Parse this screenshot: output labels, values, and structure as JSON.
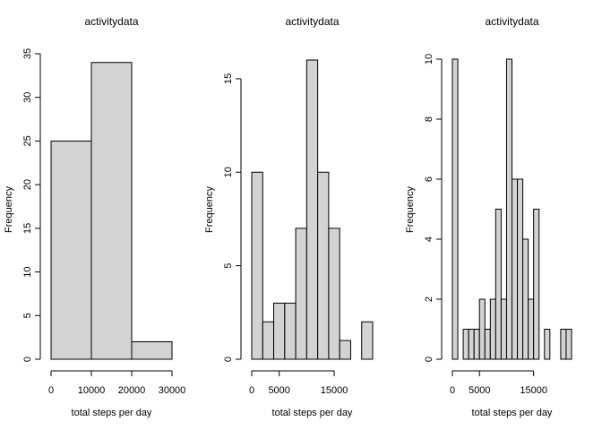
{
  "chart_data": [
    {
      "type": "histogram",
      "title": "activitydata",
      "xlabel": "total steps per day",
      "ylabel": "Frequency",
      "bins": [
        0,
        10000,
        20000,
        30000
      ],
      "counts": [
        25,
        34,
        2
      ],
      "color": "#d3d3d3",
      "xlim": [
        0,
        30000
      ],
      "ylim": [
        0,
        35
      ],
      "xticks": [
        0,
        10000,
        20000,
        30000
      ],
      "yticks": [
        0,
        5,
        10,
        15,
        20,
        25,
        30,
        35
      ]
    },
    {
      "type": "histogram",
      "title": "activitydata",
      "xlabel": "total steps per day",
      "ylabel": "Frequency",
      "bins": [
        0,
        2000,
        4000,
        6000,
        8000,
        10000,
        12000,
        14000,
        16000,
        18000,
        20000,
        22000
      ],
      "counts": [
        10,
        2,
        3,
        3,
        7,
        16,
        10,
        7,
        1,
        0,
        2
      ],
      "color": "#d3d3d3",
      "xlim": [
        0,
        22000
      ],
      "ylim": [
        0,
        16
      ],
      "xticks": [
        0,
        5000,
        15000
      ],
      "yticks": [
        0,
        5,
        10,
        15
      ]
    },
    {
      "type": "histogram",
      "title": "activitydata",
      "xlabel": "total steps per day",
      "ylabel": "Frequency",
      "bins": [
        0,
        1000,
        2000,
        3000,
        4000,
        5000,
        6000,
        7000,
        8000,
        9000,
        10000,
        11000,
        12000,
        13000,
        14000,
        15000,
        16000,
        17000,
        18000,
        19000,
        20000,
        21000,
        22000
      ],
      "counts": [
        10,
        0,
        1,
        1,
        1,
        2,
        1,
        2,
        5,
        2,
        10,
        6,
        6,
        4,
        2,
        5,
        0,
        1,
        0,
        0,
        1,
        1
      ],
      "color": "#d3d3d3",
      "xlim": [
        0,
        22000
      ],
      "ylim": [
        0,
        10
      ],
      "xticks": [
        0,
        5000,
        15000
      ],
      "yticks": [
        0,
        2,
        4,
        6,
        8,
        10
      ]
    }
  ]
}
